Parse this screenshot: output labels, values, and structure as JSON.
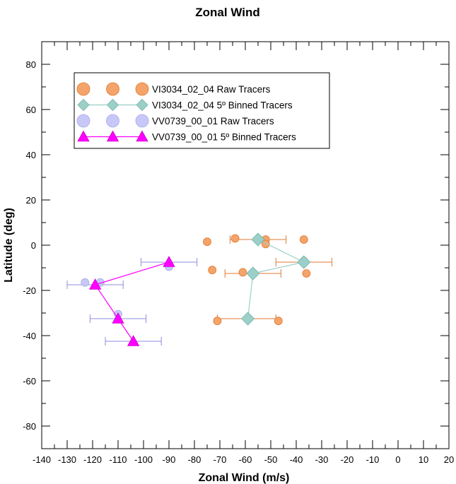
{
  "chart_data": {
    "type": "scatter",
    "title": "Zonal Wind",
    "xlabel": "Zonal Wind (m/s)",
    "ylabel": "Latitude (deg)",
    "xlim": [
      -140,
      20
    ],
    "ylim": [
      -90,
      90
    ],
    "xticks": [
      -140,
      -130,
      -120,
      -110,
      -100,
      -90,
      -80,
      -70,
      -60,
      -50,
      -40,
      -30,
      -20,
      -10,
      0,
      10,
      20
    ],
    "yticks": [
      -80,
      -60,
      -40,
      -20,
      0,
      20,
      40,
      60,
      80
    ],
    "grid": false,
    "legend_position": "top-left",
    "series": [
      {
        "name": "VI3034_02_04 Raw Tracers",
        "marker": "circle",
        "color": "#f4a46a",
        "stroke": "#e07a30",
        "points": [
          [
            -64,
            3
          ],
          [
            -52,
            2.5
          ],
          [
            -37,
            2.5
          ],
          [
            -75,
            1.5
          ],
          [
            -52,
            0.5
          ],
          [
            -37,
            -7
          ],
          [
            -73,
            -11
          ],
          [
            -61,
            -12
          ],
          [
            -36,
            -12.5
          ],
          [
            -71,
            -33.5
          ],
          [
            -47,
            -33.5
          ]
        ]
      },
      {
        "name": "VI3034_02_04 5º Binned Tracers",
        "marker": "diamond",
        "line": true,
        "color": "#9ccfc8",
        "stroke": "#6fb4ac",
        "errorbar_color": "#e07a30",
        "points": [
          [
            -55,
            2.5
          ],
          [
            -37,
            -7.5
          ],
          [
            -57,
            -12.5
          ],
          [
            -59,
            -32.5
          ]
        ],
        "xerr": [
          [
            -66,
            -44
          ],
          [
            -48,
            -26
          ],
          [
            -68,
            -46
          ],
          [
            -71,
            -48
          ]
        ]
      },
      {
        "name": "VV0739_00_01 Raw Tracers",
        "marker": "circle",
        "color": "#c8c8f8",
        "stroke": "#a8a8e8",
        "points": [
          [
            -90,
            -9.5
          ],
          [
            -123,
            -16.5
          ],
          [
            -117,
            -16.5
          ],
          [
            -110,
            -30.5
          ]
        ]
      },
      {
        "name": "VV0739_00_01 5º Binned Tracers",
        "marker": "triangle",
        "line": true,
        "color": "#ff00ff",
        "stroke": "#cc00cc",
        "errorbar_color": "#8c8ce0",
        "points": [
          [
            -90,
            -7.5
          ],
          [
            -119,
            -17.5
          ],
          [
            -110,
            -32.5
          ],
          [
            -104,
            -42.5
          ]
        ],
        "xerr": [
          [
            -101,
            -79
          ],
          [
            -130,
            -108
          ],
          [
            -121,
            -99
          ],
          [
            -115,
            -93
          ]
        ]
      }
    ]
  }
}
